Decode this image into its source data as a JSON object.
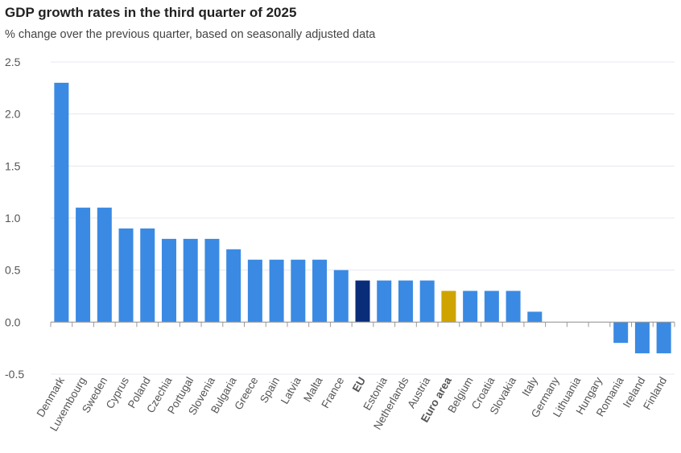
{
  "chart_data": {
    "type": "bar",
    "title": "GDP growth rates in the third quarter of 2025",
    "subtitle": "% change over the previous quarter, based on seasonally adjusted data",
    "xlabel": "",
    "ylabel": "",
    "ylim": [
      -0.5,
      2.5
    ],
    "yticks": [
      "2.5",
      "2.0",
      "1.5",
      "1.0",
      "0.5",
      "0.0",
      "-0.5"
    ],
    "grid": true,
    "colors": {
      "default": "#3a8ae3",
      "eu": "#0a2d7a",
      "euro_area": "#cfa400"
    },
    "categories": [
      "Denmark",
      "Luxembourg",
      "Sweden",
      "Cyprus",
      "Poland",
      "Czechia",
      "Portugal",
      "Slovenia",
      "Bulgaria",
      "Greece",
      "Spain",
      "Latvia",
      "Malta",
      "France",
      "EU",
      "Estonia",
      "Netherlands",
      "Austria",
      "Euro area",
      "Belgium",
      "Croatia",
      "Slovakia",
      "Italy",
      "Germany",
      "Lithuania",
      "Hungary",
      "Romania",
      "Ireland",
      "Finland"
    ],
    "values": [
      2.3,
      1.1,
      1.1,
      0.9,
      0.9,
      0.8,
      0.8,
      0.8,
      0.7,
      0.6,
      0.6,
      0.6,
      0.6,
      0.5,
      0.4,
      0.4,
      0.4,
      0.4,
      0.3,
      0.3,
      0.3,
      0.3,
      0.1,
      0.0,
      0.0,
      0.0,
      -0.2,
      -0.3,
      -0.3
    ],
    "highlight": {
      "EU": "eu",
      "Euro area": "euro_area"
    }
  }
}
